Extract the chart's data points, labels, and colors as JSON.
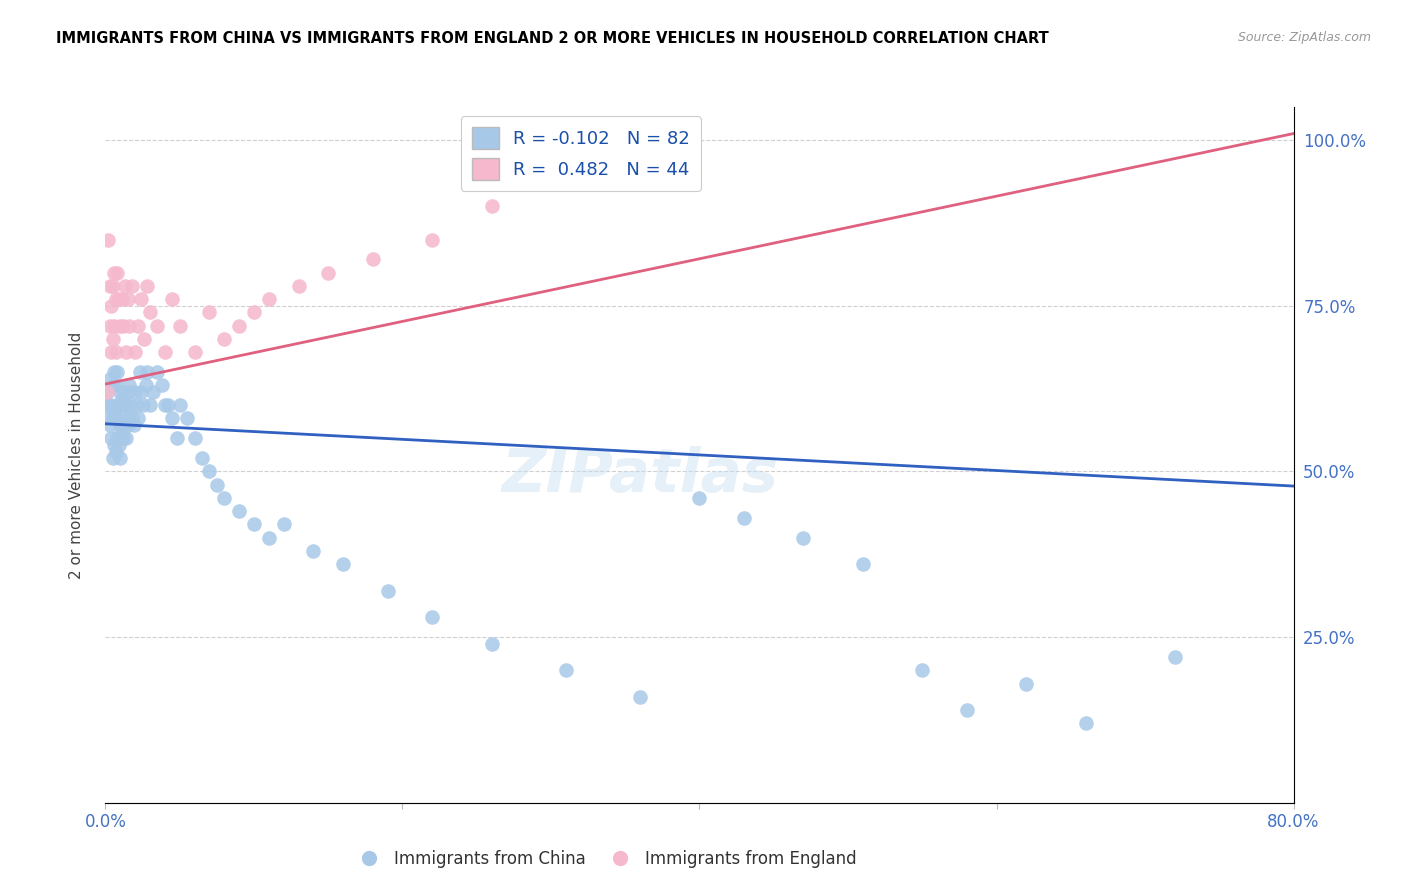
{
  "title": "IMMIGRANTS FROM CHINA VS IMMIGRANTS FROM ENGLAND 2 OR MORE VEHICLES IN HOUSEHOLD CORRELATION CHART",
  "source": "Source: ZipAtlas.com",
  "ylabel": "2 or more Vehicles in Household",
  "xlim": [
    0.0,
    0.8
  ],
  "ylim": [
    0.0,
    1.05
  ],
  "china_R": -0.102,
  "china_N": 82,
  "england_R": 0.482,
  "england_N": 44,
  "china_color": "#a8c8e8",
  "england_color": "#f5b8cc",
  "china_line_color": "#3060c0",
  "england_line_color": "#e06080",
  "watermark": "ZIPatlas",
  "china_scatter_x": [
    0.001,
    0.001,
    0.002,
    0.003,
    0.003,
    0.004,
    0.004,
    0.005,
    0.005,
    0.005,
    0.006,
    0.006,
    0.006,
    0.007,
    0.007,
    0.007,
    0.008,
    0.008,
    0.008,
    0.009,
    0.009,
    0.01,
    0.01,
    0.01,
    0.011,
    0.011,
    0.012,
    0.012,
    0.013,
    0.013,
    0.014,
    0.014,
    0.015,
    0.015,
    0.016,
    0.016,
    0.017,
    0.018,
    0.019,
    0.02,
    0.021,
    0.022,
    0.023,
    0.024,
    0.025,
    0.027,
    0.028,
    0.03,
    0.032,
    0.035,
    0.038,
    0.04,
    0.042,
    0.045,
    0.048,
    0.05,
    0.055,
    0.06,
    0.065,
    0.07,
    0.075,
    0.08,
    0.09,
    0.1,
    0.11,
    0.12,
    0.14,
    0.16,
    0.19,
    0.22,
    0.26,
    0.31,
    0.36,
    0.4,
    0.43,
    0.47,
    0.51,
    0.55,
    0.58,
    0.62,
    0.66,
    0.72
  ],
  "china_scatter_y": [
    0.58,
    0.62,
    0.6,
    0.57,
    0.64,
    0.55,
    0.6,
    0.52,
    0.58,
    0.63,
    0.54,
    0.59,
    0.65,
    0.53,
    0.58,
    0.63,
    0.55,
    0.6,
    0.65,
    0.54,
    0.59,
    0.52,
    0.57,
    0.62,
    0.56,
    0.61,
    0.55,
    0.6,
    0.57,
    0.62,
    0.55,
    0.6,
    0.57,
    0.62,
    0.58,
    0.63,
    0.6,
    0.58,
    0.57,
    0.62,
    0.6,
    0.58,
    0.65,
    0.62,
    0.6,
    0.63,
    0.65,
    0.6,
    0.62,
    0.65,
    0.63,
    0.6,
    0.6,
    0.58,
    0.55,
    0.6,
    0.58,
    0.55,
    0.52,
    0.5,
    0.48,
    0.46,
    0.44,
    0.42,
    0.4,
    0.42,
    0.38,
    0.36,
    0.32,
    0.28,
    0.24,
    0.2,
    0.16,
    0.46,
    0.43,
    0.4,
    0.36,
    0.2,
    0.14,
    0.18,
    0.12,
    0.22
  ],
  "england_scatter_x": [
    0.001,
    0.002,
    0.003,
    0.003,
    0.004,
    0.004,
    0.005,
    0.005,
    0.006,
    0.006,
    0.007,
    0.007,
    0.008,
    0.009,
    0.01,
    0.011,
    0.012,
    0.013,
    0.014,
    0.015,
    0.016,
    0.018,
    0.02,
    0.022,
    0.024,
    0.026,
    0.028,
    0.03,
    0.035,
    0.04,
    0.045,
    0.05,
    0.06,
    0.07,
    0.08,
    0.09,
    0.1,
    0.11,
    0.13,
    0.15,
    0.18,
    0.22,
    0.26,
    0.3
  ],
  "england_scatter_y": [
    0.62,
    0.85,
    0.72,
    0.78,
    0.68,
    0.75,
    0.7,
    0.78,
    0.72,
    0.8,
    0.68,
    0.76,
    0.8,
    0.76,
    0.72,
    0.76,
    0.72,
    0.78,
    0.68,
    0.76,
    0.72,
    0.78,
    0.68,
    0.72,
    0.76,
    0.7,
    0.78,
    0.74,
    0.72,
    0.68,
    0.76,
    0.72,
    0.68,
    0.74,
    0.7,
    0.72,
    0.74,
    0.76,
    0.78,
    0.8,
    0.82,
    0.85,
    0.9,
    0.95
  ],
  "china_line_x0": 0.0,
  "china_line_y0": 0.572,
  "china_line_x1": 0.8,
  "china_line_y1": 0.478,
  "england_line_x0": 0.0,
  "england_line_y0": 0.632,
  "england_line_x1": 0.8,
  "england_line_y1": 1.01
}
